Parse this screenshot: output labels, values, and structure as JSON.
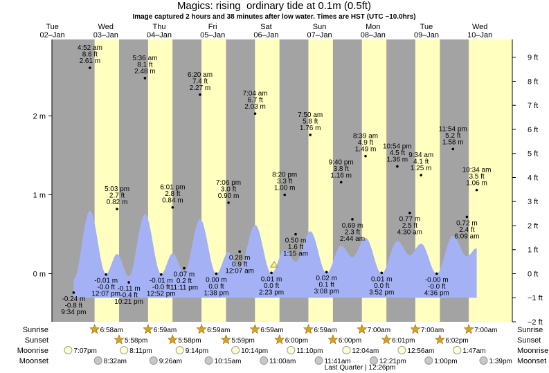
{
  "chart_data": {
    "type": "tide",
    "title": "Magics: rising  ordinary tide at 0.1m (0.5ft)",
    "subtitle": "Image captured 2 hours and 38 minutes after low water. Times are HST (UTC −10.0hrs)",
    "ylim": [
      -0.61,
      2.97
    ],
    "yticks": [
      {
        "value": 0,
        "label": "0 m"
      },
      {
        "value": 1,
        "label": "1 m"
      },
      {
        "value": 2,
        "label": "2 m"
      }
    ],
    "y2lim": [
      -2,
      9.74
    ],
    "y2ticks": [
      {
        "value": -2,
        "label": "−2 ft"
      },
      {
        "value": -1,
        "label": "−1 ft"
      },
      {
        "value": 0,
        "label": "0 ft"
      },
      {
        "value": 1,
        "label": "1 ft"
      },
      {
        "value": 2,
        "label": "2 ft"
      },
      {
        "value": 3,
        "label": "3 ft"
      },
      {
        "value": 4,
        "label": "4 ft"
      },
      {
        "value": 5,
        "label": "5 ft"
      },
      {
        "value": 6,
        "label": "6 ft"
      },
      {
        "value": 7,
        "label": "7 ft"
      },
      {
        "value": 8,
        "label": "8 ft"
      },
      {
        "value": 9,
        "label": "9 ft"
      }
    ],
    "colors": {
      "night": "#a3a3a3",
      "day": "#ffffc0",
      "tide": "#a4b2f5",
      "dot": "#000000",
      "header": "#e00000"
    },
    "row_labels": [
      "Sunrise",
      "Sunset",
      "Moonrise",
      "Moonset"
    ],
    "moon_phase": "Last Quarter | 12:26pm",
    "days": [
      {
        "dow": "Tue",
        "date": "02–Jan",
        "moonrise": "7:07pm",
        "tides": [
          {
            "time": "9:34 pm",
            "height": -0.24,
            "value_label": "-0.24 m",
            "ft_label": "-0.8 ft"
          }
        ]
      },
      {
        "dow": "Wed",
        "date": "03–Jan",
        "sunrise": "6:58am",
        "sunset": "5:58pm",
        "moonrise": "8:11pm",
        "moonset": "8:32am",
        "tides": [
          {
            "time": "4:52 am",
            "height": 2.61,
            "value_label": "2.61 m",
            "ft_label": "8.6 ft"
          },
          {
            "time": "12:07 pm",
            "height": -0.01,
            "value_label": "-0.01 m",
            "ft_label": "-0.0 ft"
          },
          {
            "time": "5:03 pm",
            "height": 0.82,
            "value_label": "0.82 m",
            "ft_label": "2.7 ft"
          },
          {
            "time": "10:21 pm",
            "height": -0.11,
            "value_label": "-0.11 m",
            "ft_label": "-0.4 ft"
          }
        ]
      },
      {
        "dow": "Thu",
        "date": "04–Jan",
        "sunrise": "6:59am",
        "sunset": "5:58pm",
        "moonrise": "9:14pm",
        "moonset": "9:26am",
        "tides": [
          {
            "time": "5:36 am",
            "height": 2.48,
            "value_label": "2.48 m",
            "ft_label": "8.1 ft"
          },
          {
            "time": "12:52 pm",
            "height": -0.01,
            "value_label": "-0.01 m",
            "ft_label": "-0.0 ft"
          },
          {
            "time": "6:01 pm",
            "height": 0.84,
            "value_label": "0.84 m",
            "ft_label": "2.8 ft"
          },
          {
            "time": "11:11 pm",
            "height": 0.07,
            "value_label": "0.07 m",
            "ft_label": "0.2 ft"
          }
        ]
      },
      {
        "dow": "Fri",
        "date": "05–Jan",
        "sunrise": "6:59am",
        "sunset": "5:59pm",
        "moonrise": "10:14pm",
        "moonset": "10:15am",
        "tides": [
          {
            "time": "6:20 am",
            "height": 2.27,
            "value_label": "2.27 m",
            "ft_label": "7.4 ft"
          },
          {
            "time": "1:38 pm",
            "height": 0.0,
            "value_label": "0.00 m",
            "ft_label": "0.0 ft"
          },
          {
            "time": "7:06 pm",
            "height": 0.9,
            "value_label": "0.90 m",
            "ft_label": "3.0 ft"
          }
        ]
      },
      {
        "dow": "Sat",
        "date": "06–Jan",
        "sunrise": "6:59am",
        "sunset": "6:00pm",
        "moonrise": "11:10pm",
        "moonset": "11:00am",
        "tides": [
          {
            "time": "12:07 am",
            "height": 0.28,
            "value_label": "0.28 m",
            "ft_label": "0.9 ft"
          },
          {
            "time": "7:04 am",
            "height": 2.03,
            "value_label": "2.03 m",
            "ft_label": "6.7 ft"
          },
          {
            "time": "2:23 pm",
            "height": 0.01,
            "value_label": "0.01 m",
            "ft_label": "0.0 ft"
          },
          {
            "time": "8:20 pm",
            "height": 1.0,
            "value_label": "1.00 m",
            "ft_label": "3.3 ft"
          }
        ]
      },
      {
        "dow": "Sun",
        "date": "07–Jan",
        "sunrise": "6:59am",
        "sunset": "6:00pm",
        "moonset": "11:41am",
        "tides": [
          {
            "time": "1:15 am",
            "height": 0.5,
            "value_label": "0.50 m",
            "ft_label": "1.6 ft"
          },
          {
            "time": "7:50 am",
            "height": 1.76,
            "value_label": "1.76 m",
            "ft_label": "5.8 ft"
          },
          {
            "time": "3:08 pm",
            "height": 0.02,
            "value_label": "0.02 m",
            "ft_label": "0.1 ft"
          },
          {
            "time": "9:40 pm",
            "height": 1.16,
            "value_label": "1.16 m",
            "ft_label": "3.8 ft"
          }
        ]
      },
      {
        "dow": "Mon",
        "date": "08–Jan",
        "sunrise": "7:00am",
        "sunset": "6:01pm",
        "moonrise": "12:04am",
        "moonset": "12:21pm",
        "tides": [
          {
            "time": "2:44 am",
            "height": 0.69,
            "value_label": "0.69 m",
            "ft_label": "2.3 ft"
          },
          {
            "time": "8:39 am",
            "height": 1.49,
            "value_label": "1.49 m",
            "ft_label": "4.9 ft"
          },
          {
            "time": "3:52 pm",
            "height": 0.01,
            "value_label": "0.01 m",
            "ft_label": "0.0 ft"
          },
          {
            "time": "10:54 pm",
            "height": 1.36,
            "value_label": "1.36 m",
            "ft_label": "4.5 ft"
          }
        ]
      },
      {
        "dow": "Tue",
        "date": "09–Jan",
        "sunrise": "7:00am",
        "sunset": "6:02pm",
        "moonrise": "12:56am",
        "moonset": "1:00pm",
        "tides": [
          {
            "time": "4:30 am",
            "height": 0.77,
            "value_label": "0.77 m",
            "ft_label": "2.5 ft"
          },
          {
            "time": "9:34 am",
            "height": 1.25,
            "value_label": "1.25 m",
            "ft_label": "4.1 ft"
          },
          {
            "time": "4:36 pm",
            "height": -0.0,
            "value_label": "-0.00 m",
            "ft_label": "-0.0 ft"
          },
          {
            "time": "11:54 pm",
            "height": 1.58,
            "value_label": "1.58 m",
            "ft_label": "5.2 ft"
          }
        ]
      },
      {
        "dow": "Wed",
        "date": "10–Jan",
        "sunrise": "7:00am",
        "moonrise": "1:47am",
        "moonset": "1:39pm",
        "tides": [
          {
            "time": "6:09 am",
            "height": 0.72,
            "value_label": "0.72 m",
            "ft_label": "2.4 ft"
          },
          {
            "time": "10:34 am",
            "height": 1.06,
            "value_label": "1.06 m",
            "ft_label": "3.5 ft"
          }
        ]
      }
    ]
  }
}
